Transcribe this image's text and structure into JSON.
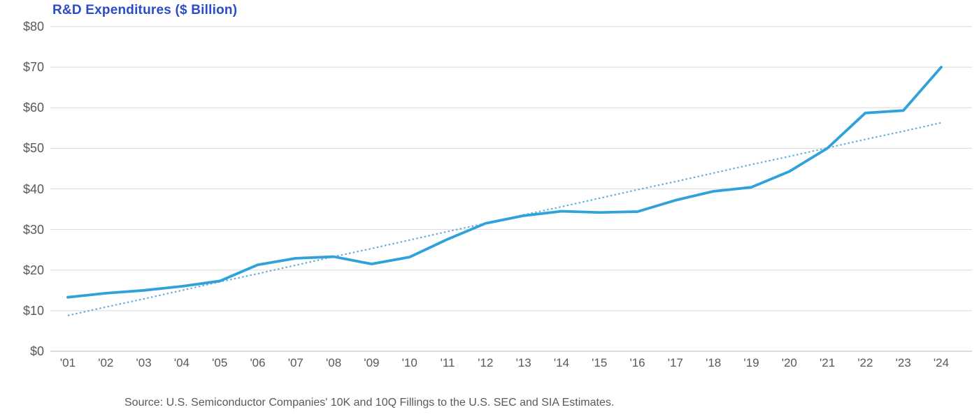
{
  "chart_title": "R&D Expenditures ($ Billion)",
  "source_note": "Source: U.S. Semiconductor Companies' 10K and 10Q Fillings to the U.S. SEC and SIA Estimates.",
  "colors": {
    "title": "#2B4BC7",
    "line": "#2FA2DB",
    "trend": "#62ACDA",
    "axis_text": "#595959",
    "gridline": "#D9D9D9",
    "baseline": "#C6C6C6"
  },
  "chart_data": {
    "type": "line",
    "title": "R&D Expenditures ($ Billion)",
    "categories": [
      "'01",
      "'02",
      "'03",
      "'04",
      "'05",
      "'06",
      "'07",
      "'08",
      "'09",
      "'10",
      "'11",
      "'12",
      "'13",
      "'14",
      "'15",
      "'16",
      "'17",
      "'18",
      "'19",
      "'20",
      "'21",
      "'22",
      "'23",
      "'24"
    ],
    "series": [
      {
        "name": "R&D Expenditures ($ Billion)",
        "style": "solid",
        "values": [
          13.3,
          14.3,
          15.0,
          16.0,
          17.3,
          21.3,
          22.9,
          23.3,
          21.5,
          23.2,
          27.6,
          31.5,
          33.4,
          34.5,
          34.2,
          34.4,
          37.2,
          39.4,
          40.4,
          44.3,
          50.0,
          58.7,
          59.3,
          70.0
        ]
      },
      {
        "name": "Linear trendline",
        "style": "dotted",
        "values": [
          8.8,
          10.9,
          12.9,
          15.0,
          17.1,
          19.1,
          21.2,
          23.3,
          25.3,
          27.4,
          29.5,
          31.5,
          33.6,
          35.6,
          37.7,
          39.8,
          41.8,
          43.9,
          46.0,
          48.0,
          50.1,
          52.2,
          54.2,
          56.3
        ]
      }
    ],
    "ylim": [
      0,
      80
    ],
    "ytick_step": 10,
    "ytick_labels": [
      "$0",
      "$10",
      "$20",
      "$30",
      "$40",
      "$50",
      "$60",
      "$70",
      "$80"
    ],
    "xlabel": "",
    "ylabel": "",
    "grid": "horizontal",
    "legend": "none"
  }
}
